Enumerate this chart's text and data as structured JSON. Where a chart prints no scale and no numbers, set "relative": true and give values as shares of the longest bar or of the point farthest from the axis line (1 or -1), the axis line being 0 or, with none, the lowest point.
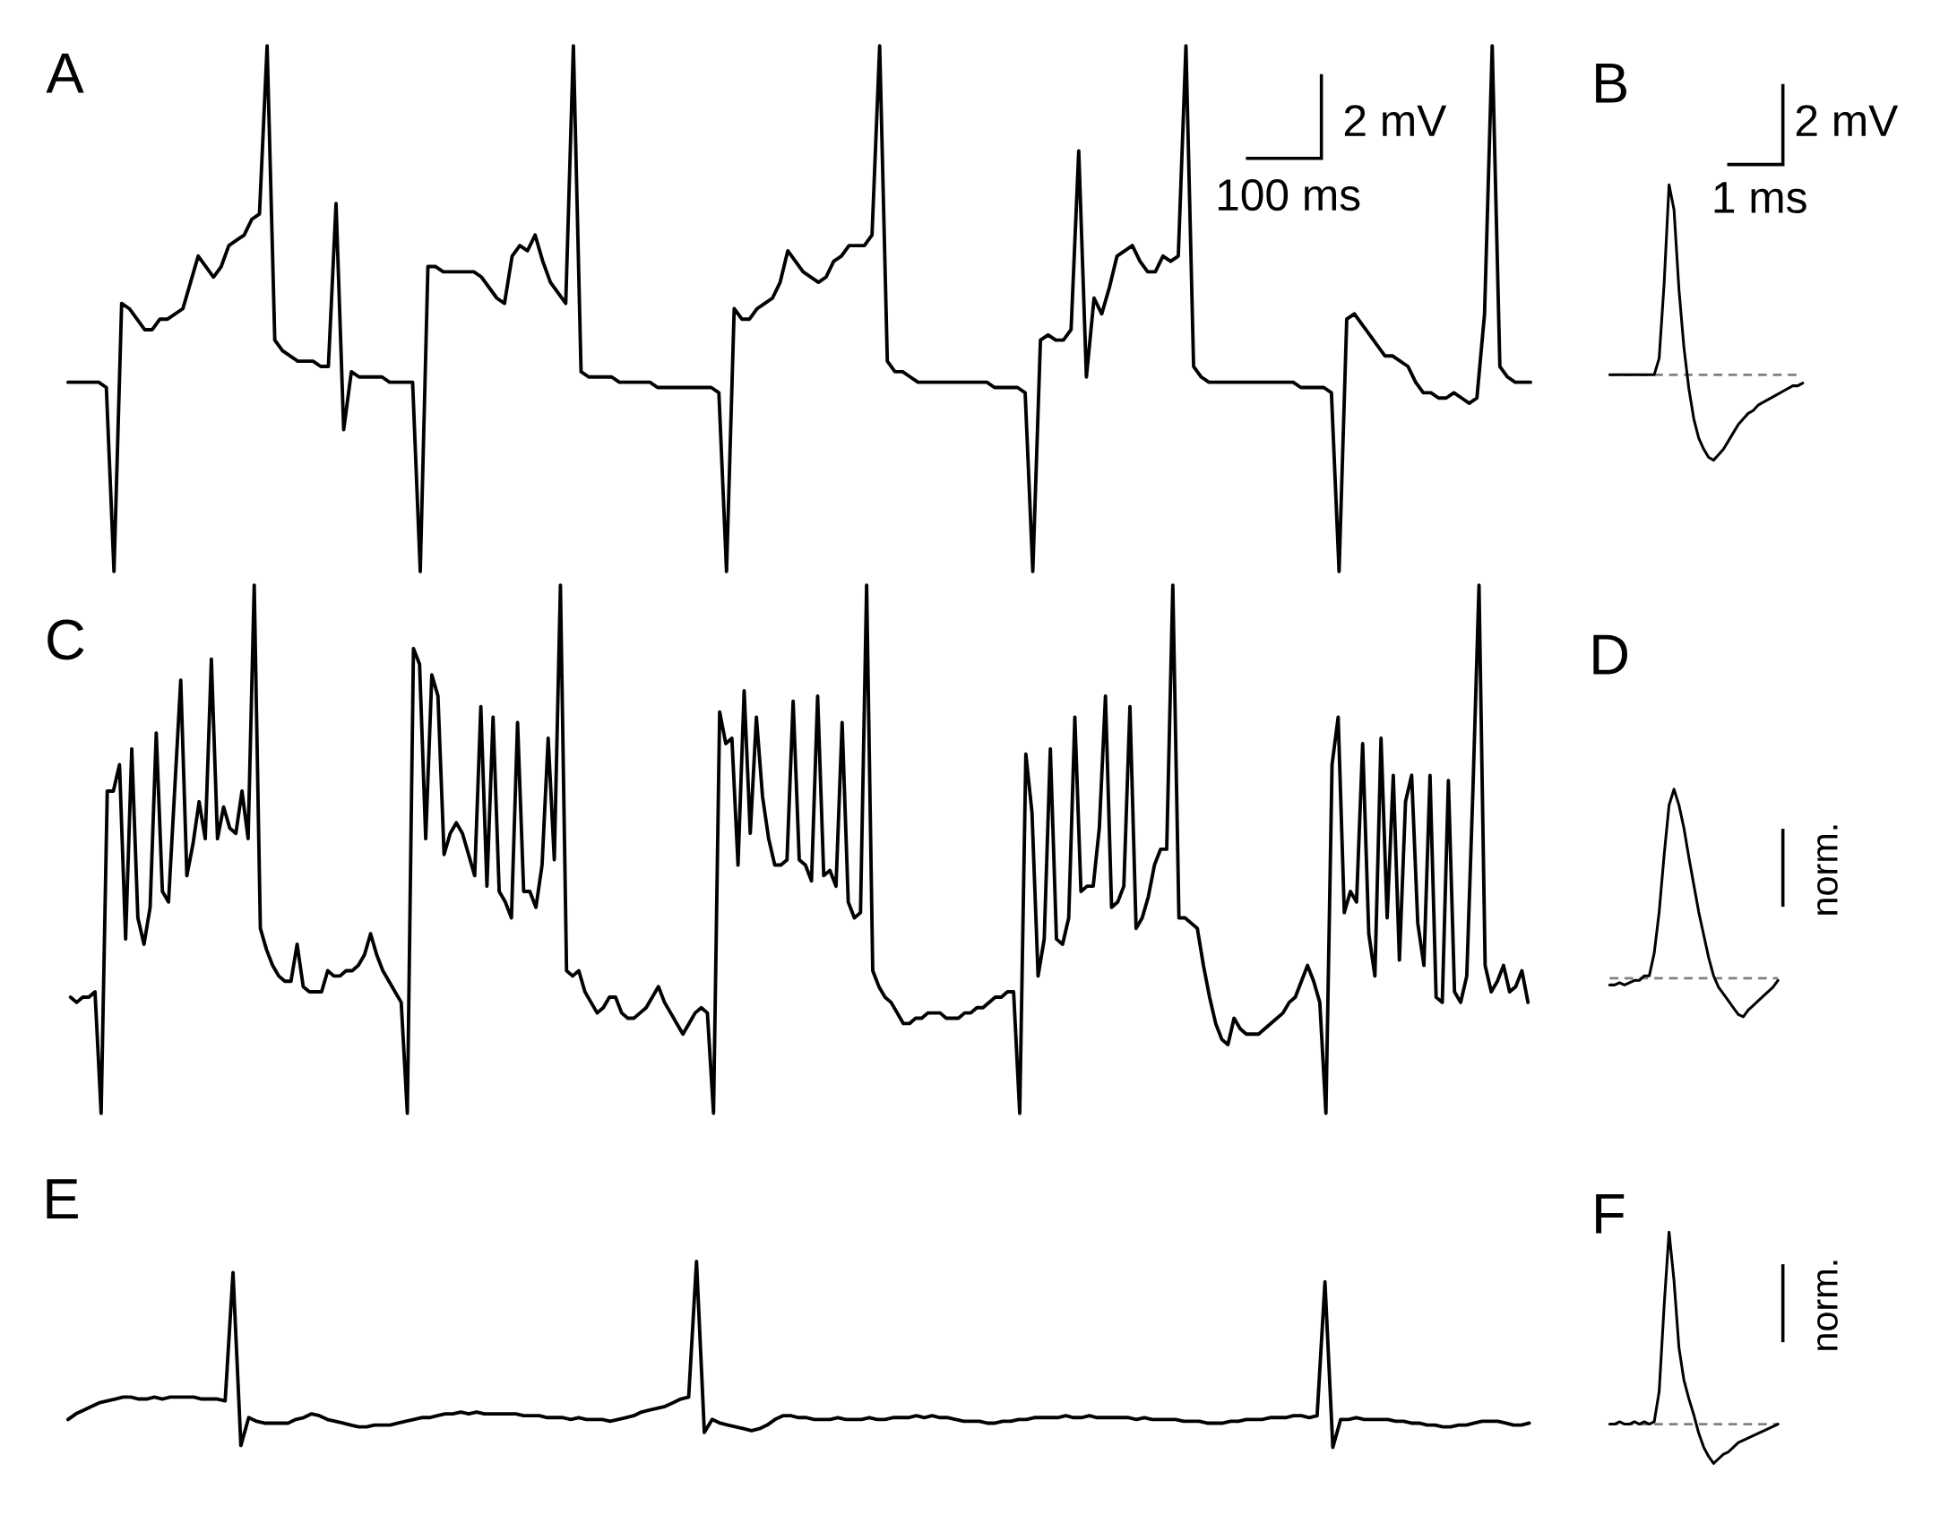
{
  "chart_data": [
    {
      "type": "line",
      "title": "A",
      "color": "#000000",
      "relative": true,
      "annotations": [
        "2 mV",
        "100 ms"
      ],
      "categories": [
        null,
        null,
        null,
        null,
        null,
        null,
        null,
        null,
        null,
        null,
        null,
        null,
        null,
        null,
        null,
        null,
        null,
        null,
        null,
        null,
        null,
        null,
        null,
        null,
        null,
        null,
        null,
        null,
        null,
        null,
        null,
        null,
        null,
        null,
        null,
        null,
        null,
        null,
        null,
        null,
        null,
        null,
        null,
        null,
        null,
        null,
        null,
        null,
        null,
        null,
        null,
        null,
        null,
        null,
        null,
        null,
        null,
        null,
        null,
        null,
        null,
        null,
        null,
        null,
        null,
        null,
        null,
        null,
        null,
        null,
        null,
        null,
        null,
        null,
        null,
        null,
        null,
        null,
        null,
        null,
        null,
        null,
        null,
        null,
        null,
        null,
        null,
        null,
        null,
        null,
        null,
        null,
        null,
        null,
        null,
        null,
        null,
        null,
        null,
        null,
        null,
        null,
        null,
        null,
        null,
        null,
        null,
        null,
        null,
        null,
        null,
        null,
        null,
        null,
        null,
        null,
        null,
        null,
        null,
        null,
        null,
        null,
        null,
        null,
        null,
        null,
        null,
        null,
        null,
        null,
        null,
        null,
        null,
        null,
        null,
        null,
        null,
        null,
        null,
        null,
        null,
        null,
        null,
        null,
        null,
        null,
        null,
        null,
        null,
        null,
        null,
        null,
        null,
        null,
        null,
        null,
        null,
        null,
        null,
        null,
        null,
        null,
        null,
        null,
        null,
        null,
        null,
        null,
        null,
        null,
        null,
        null,
        null,
        null,
        null,
        null,
        null,
        null,
        null,
        null,
        null,
        null,
        null,
        null,
        null,
        null,
        null,
        null,
        null,
        null,
        null,
        null
      ],
      "values": [
        0.36,
        0.36,
        0.36,
        0.36,
        0.36,
        0.35,
        0,
        0.51,
        0.5,
        0.48,
        0.46,
        0.46,
        0.48,
        0.48,
        0.49,
        0.5,
        0.55,
        0.6,
        0.58,
        0.56,
        0.58,
        0.62,
        0.63,
        0.64,
        0.67,
        0.68,
        1,
        0.44,
        0.42,
        0.41,
        0.4,
        0.4,
        0.4,
        0.39,
        0.39,
        0.7,
        0.27,
        0.38,
        0.37,
        0.37,
        0.37,
        0.37,
        0.36,
        0.36,
        0.36,
        0.36,
        0,
        0.58,
        0.58,
        0.57,
        0.57,
        0.57,
        0.57,
        0.57,
        0.56,
        0.54,
        0.52,
        0.51,
        0.6,
        0.62,
        0.61,
        0.64,
        0.59,
        0.55,
        0.53,
        0.51,
        1,
        0.38,
        0.37,
        0.37,
        0.37,
        0.37,
        0.36,
        0.36,
        0.36,
        0.36,
        0.36,
        0.35,
        0.35,
        0.35,
        0.35,
        0.35,
        0.35,
        0.35,
        0.35,
        0.34,
        0,
        0.5,
        0.48,
        0.48,
        0.5,
        0.51,
        0.52,
        0.55,
        0.61,
        0.59,
        0.57,
        0.56,
        0.55,
        0.56,
        0.59,
        0.6,
        0.62,
        0.62,
        0.62,
        0.64,
        1,
        0.4,
        0.38,
        0.38,
        0.37,
        0.36,
        0.36,
        0.36,
        0.36,
        0.36,
        0.36,
        0.36,
        0.36,
        0.36,
        0.36,
        0.35,
        0.35,
        0.35,
        0.35,
        0.34,
        0,
        0.44,
        0.45,
        0.44,
        0.44,
        0.46,
        0.8,
        0.37,
        0.52,
        0.49,
        0.54,
        0.6,
        0.61,
        0.62,
        0.59,
        0.57,
        0.57,
        0.6,
        0.59,
        0.6,
        1,
        0.39,
        0.37,
        0.36,
        0.36,
        0.36,
        0.36,
        0.36,
        0.36,
        0.36,
        0.36,
        0.36,
        0.36,
        0.36,
        0.36,
        0.35,
        0.35,
        0.35,
        0.35,
        0.34,
        0,
        0.48,
        0.49,
        0.47,
        0.45,
        0.43,
        0.41,
        0.41,
        0.4,
        0.39,
        0.36,
        0.34,
        0.34,
        0.33,
        0.33,
        0.34,
        0.33,
        0.32,
        0.33,
        0.49,
        1,
        0.39,
        0.37,
        0.36,
        0.36,
        0.36
      ]
    },
    {
      "type": "line",
      "title": "B",
      "color": "#000000",
      "relative": true,
      "annotations": [
        "2 mV",
        "1 ms"
      ],
      "ref_lines": [
        {
          "axis": "y",
          "value": 0.31,
          "color": "#808080",
          "line_style": "dashed"
        }
      ],
      "categories": [
        null,
        null,
        null,
        null,
        null,
        null,
        null,
        null,
        null,
        null,
        null,
        null,
        null,
        null,
        null,
        null,
        null,
        null,
        null,
        null,
        null,
        null,
        null,
        null,
        null,
        null,
        null,
        null,
        null,
        null,
        null,
        null,
        null,
        null,
        null,
        null,
        null,
        null,
        null,
        null
      ],
      "values": [
        0.31,
        0.31,
        0.31,
        0.31,
        0.31,
        0.31,
        0.31,
        0.31,
        0.31,
        0.31,
        0.37,
        0.64,
        1,
        0.91,
        0.62,
        0.41,
        0.26,
        0.15,
        0.08,
        0.04,
        0.01,
        0,
        0.02,
        0.04,
        0.07,
        0.1,
        0.13,
        0.15,
        0.17,
        0.18,
        0.2,
        0.21,
        0.22,
        0.23,
        0.24,
        0.25,
        0.26,
        0.27,
        0.27,
        0.28
      ]
    },
    {
      "type": "line",
      "title": "C",
      "color": "#000000",
      "relative": true,
      "categories": [
        null,
        null,
        null,
        null,
        null,
        null,
        null,
        null,
        null,
        null,
        null,
        null,
        null,
        null,
        null,
        null,
        null,
        null,
        null,
        null,
        null,
        null,
        null,
        null,
        null,
        null,
        null,
        null,
        null,
        null,
        null,
        null,
        null,
        null,
        null,
        null,
        null,
        null,
        null,
        null,
        null,
        null,
        null,
        null,
        null,
        null,
        null,
        null,
        null,
        null,
        null,
        null,
        null,
        null,
        null,
        null,
        null,
        null,
        null,
        null,
        null,
        null,
        null,
        null,
        null,
        null,
        null,
        null,
        null,
        null,
        null,
        null,
        null,
        null,
        null,
        null,
        null,
        null,
        null,
        null,
        null,
        null,
        null,
        null,
        null,
        null,
        null,
        null,
        null,
        null,
        null,
        null,
        null,
        null,
        null,
        null,
        null,
        null,
        null,
        null,
        null,
        null,
        null,
        null,
        null,
        null,
        null,
        null,
        null,
        null,
        null,
        null,
        null,
        null,
        null,
        null,
        null,
        null,
        null,
        null,
        null,
        null,
        null,
        null,
        null,
        null,
        null,
        null,
        null,
        null,
        null,
        null,
        null,
        null,
        null,
        null,
        null,
        null,
        null,
        null,
        null,
        null,
        null,
        null,
        null,
        null,
        null,
        null,
        null,
        null,
        null,
        null,
        null,
        null,
        null,
        null,
        null,
        null,
        null,
        null,
        null,
        null,
        null,
        null,
        null,
        null,
        null,
        null,
        null,
        null,
        null,
        null,
        null,
        null,
        null,
        null,
        null,
        null,
        null,
        null,
        null,
        null,
        null,
        null,
        null,
        null,
        null,
        null,
        null,
        null,
        null,
        null,
        null,
        null,
        null,
        null,
        null,
        null,
        null,
        null,
        null,
        null,
        null,
        null,
        null,
        null,
        null,
        null,
        null,
        null,
        null,
        null,
        null,
        null,
        null,
        null,
        null,
        null,
        null,
        null,
        null,
        null,
        null,
        null,
        null,
        null,
        null,
        null,
        null,
        null,
        null,
        null,
        null,
        null,
        null,
        null,
        null,
        null,
        null
      ],
      "values": [
        0.22,
        0.21,
        0.22,
        0.22,
        0.23,
        0,
        0.61,
        0.61,
        0.66,
        0.33,
        0.69,
        0.37,
        0.32,
        0.39,
        0.72,
        0.42,
        0.4,
        0.61,
        0.82,
        0.45,
        0.51,
        0.59,
        0.52,
        0.86,
        0.52,
        0.58,
        0.54,
        0.53,
        0.61,
        0.52,
        1,
        0.35,
        0.31,
        0.28,
        0.26,
        0.25,
        0.25,
        0.32,
        0.24,
        0.23,
        0.23,
        0.23,
        0.27,
        0.26,
        0.26,
        0.27,
        0.27,
        0.28,
        0.3,
        0.34,
        0.3,
        0.27,
        0.25,
        0.23,
        0.21,
        0,
        0.88,
        0.85,
        0.52,
        0.83,
        0.79,
        0.49,
        0.53,
        0.55,
        0.53,
        0.49,
        0.45,
        0.77,
        0.43,
        0.75,
        0.42,
        0.4,
        0.37,
        0.74,
        0.42,
        0.42,
        0.39,
        0.47,
        0.71,
        0.48,
        1,
        0.27,
        0.26,
        0.27,
        0.23,
        0.21,
        0.19,
        0.2,
        0.22,
        0.22,
        0.19,
        0.18,
        0.18,
        0.19,
        0.2,
        0.22,
        0.24,
        0.21,
        0.19,
        0.17,
        0.15,
        0.17,
        0.19,
        0.2,
        0.19,
        0,
        0.76,
        0.7,
        0.71,
        0.47,
        0.8,
        0.53,
        0.75,
        0.6,
        0.52,
        0.47,
        0.47,
        0.48,
        0.78,
        0.48,
        0.47,
        0.44,
        0.79,
        0.45,
        0.46,
        0.43,
        0.74,
        0.4,
        0.37,
        0.38,
        1,
        0.27,
        0.24,
        0.22,
        0.21,
        0.19,
        0.17,
        0.17,
        0.18,
        0.18,
        0.19,
        0.19,
        0.19,
        0.18,
        0.18,
        0.18,
        0.19,
        0.19,
        0.2,
        0.2,
        0.21,
        0.22,
        0.22,
        0.23,
        0.23,
        0,
        0.68,
        0.57,
        0.26,
        0.33,
        0.69,
        0.33,
        0.32,
        0.37,
        0.75,
        0.42,
        0.43,
        0.43,
        0.54,
        0.79,
        0.39,
        0.4,
        0.43,
        0.77,
        0.35,
        0.37,
        0.41,
        0.47,
        0.5,
        0.5,
        1,
        0.37,
        0.37,
        0.36,
        0.35,
        0.28,
        0.22,
        0.17,
        0.14,
        0.13,
        0.18,
        0.16,
        0.15,
        0.15,
        0.15,
        0.16,
        0.17,
        0.18,
        0.19,
        0.21,
        0.22,
        0.25,
        0.28,
        0.25,
        0.21,
        0,
        0.66,
        0.75,
        0.38,
        0.42,
        0.4,
        0.7,
        0.34,
        0.26,
        0.71,
        0.37,
        0.64,
        0.29,
        0.59,
        0.64,
        0.36,
        0.28,
        0.64,
        0.22,
        0.21,
        0.63,
        0.23,
        0.21,
        0.26,
        0.61,
        1,
        0.28,
        0.23,
        0.25,
        0.28,
        0.23,
        0.24,
        0.27,
        0.21
      ]
    },
    {
      "type": "line",
      "title": "D",
      "color": "#000000",
      "relative": true,
      "annotations": [
        "norm."
      ],
      "ref_lines": [
        {
          "axis": "y",
          "value": 0.17,
          "color": "#808080",
          "line_style": "dashed"
        }
      ],
      "categories": [
        null,
        null,
        null,
        null,
        null,
        null,
        null,
        null,
        null,
        null,
        null,
        null,
        null,
        null,
        null,
        null,
        null,
        null,
        null,
        null,
        null,
        null,
        null,
        null,
        null,
        null,
        null,
        null,
        null,
        null,
        null,
        null,
        null,
        null,
        null
      ],
      "values": [
        0.14,
        0.14,
        0.15,
        0.14,
        0.15,
        0.16,
        0.16,
        0.18,
        0.18,
        0.28,
        0.46,
        0.71,
        0.93,
        1,
        0.93,
        0.83,
        0.7,
        0.58,
        0.46,
        0.36,
        0.26,
        0.18,
        0.13,
        0.1,
        0.07,
        0.04,
        0.01,
        0,
        0.03,
        0.05,
        0.07,
        0.09,
        0.11,
        0.13,
        0.16
      ]
    },
    {
      "type": "line",
      "title": "E",
      "color": "#000000",
      "relative": true,
      "categories": [
        null,
        null,
        null,
        null,
        null,
        null,
        null,
        null,
        null,
        null,
        null,
        null,
        null,
        null,
        null,
        null,
        null,
        null,
        null,
        null,
        null,
        null,
        null,
        null,
        null,
        null,
        null,
        null,
        null,
        null,
        null,
        null,
        null,
        null,
        null,
        null,
        null,
        null,
        null,
        null,
        null,
        null,
        null,
        null,
        null,
        null,
        null,
        null,
        null,
        null,
        null,
        null,
        null,
        null,
        null,
        null,
        null,
        null,
        null,
        null,
        null,
        null,
        null,
        null,
        null,
        null,
        null,
        null,
        null,
        null,
        null,
        null,
        null,
        null,
        null,
        null,
        null,
        null,
        null,
        null,
        null,
        null,
        null,
        null,
        null,
        null,
        null,
        null,
        null,
        null,
        null,
        null,
        null,
        null,
        null,
        null,
        null,
        null,
        null,
        null,
        null,
        null,
        null,
        null,
        null,
        null,
        null,
        null,
        null,
        null,
        null,
        null,
        null,
        null,
        null,
        null,
        null,
        null,
        null,
        null,
        null,
        null,
        null,
        null,
        null,
        null,
        null,
        null,
        null,
        null,
        null,
        null,
        null,
        null,
        null,
        null,
        null,
        null,
        null,
        null,
        null,
        null,
        null,
        null,
        null,
        null,
        null,
        null,
        null,
        null,
        null,
        null,
        null,
        null,
        null,
        null,
        null,
        null,
        null,
        null,
        null,
        null,
        null,
        null,
        null,
        null,
        null,
        null,
        null,
        null,
        null,
        null,
        null,
        null,
        null,
        null,
        null,
        null,
        null,
        null,
        null,
        null,
        null,
        null,
        null,
        null,
        null
      ],
      "values": [
        0.15,
        0.18,
        0.2,
        0.22,
        0.24,
        0.25,
        0.26,
        0.27,
        0.27,
        0.26,
        0.26,
        0.27,
        0.26,
        0.27,
        0.27,
        0.27,
        0.27,
        0.26,
        0.26,
        0.26,
        0.25,
        0.94,
        0.01,
        0.16,
        0.14,
        0.13,
        0.13,
        0.13,
        0.13,
        0.15,
        0.16,
        0.18,
        0.17,
        0.15,
        0.14,
        0.13,
        0.12,
        0.11,
        0.11,
        0.12,
        0.12,
        0.12,
        0.13,
        0.14,
        0.15,
        0.16,
        0.16,
        0.17,
        0.18,
        0.18,
        0.19,
        0.18,
        0.19,
        0.18,
        0.18,
        0.18,
        0.18,
        0.18,
        0.17,
        0.17,
        0.17,
        0.16,
        0.16,
        0.16,
        0.15,
        0.16,
        0.15,
        0.15,
        0.15,
        0.14,
        0.15,
        0.16,
        0.17,
        0.19,
        0.2,
        0.21,
        0.22,
        0.24,
        0.26,
        0.27,
        1,
        0.08,
        0.15,
        0.13,
        0.12,
        0.11,
        0.1,
        0.09,
        0.1,
        0.12,
        0.15,
        0.17,
        0.17,
        0.16,
        0.16,
        0.15,
        0.15,
        0.15,
        0.16,
        0.15,
        0.15,
        0.15,
        0.16,
        0.15,
        0.15,
        0.16,
        0.16,
        0.16,
        0.17,
        0.16,
        0.17,
        0.16,
        0.16,
        0.15,
        0.14,
        0.14,
        0.14,
        0.13,
        0.13,
        0.14,
        0.14,
        0.15,
        0.15,
        0.16,
        0.16,
        0.16,
        0.16,
        0.17,
        0.16,
        0.16,
        0.17,
        0.16,
        0.16,
        0.16,
        0.16,
        0.16,
        0.15,
        0.16,
        0.15,
        0.15,
        0.15,
        0.15,
        0.14,
        0.14,
        0.14,
        0.13,
        0.13,
        0.13,
        0.14,
        0.14,
        0.15,
        0.15,
        0.15,
        0.16,
        0.16,
        0.16,
        0.17,
        0.17,
        0.16,
        0.17,
        0.89,
        0,
        0.15,
        0.15,
        0.16,
        0.15,
        0.15,
        0.15,
        0.15,
        0.14,
        0.14,
        0.13,
        0.13,
        0.12,
        0.12,
        0.11,
        0.11,
        0.12,
        0.12,
        0.13,
        0.14,
        0.14,
        0.14,
        0.13,
        0.12,
        0.12,
        0.13
      ]
    },
    {
      "type": "line",
      "title": "F",
      "color": "#000000",
      "relative": true,
      "annotations": [
        "norm."
      ],
      "ref_lines": [
        {
          "axis": "y",
          "value": 0.17,
          "color": "#808080",
          "line_style": "dashed"
        }
      ],
      "categories": [
        null,
        null,
        null,
        null,
        null,
        null,
        null,
        null,
        null,
        null,
        null,
        null,
        null,
        null,
        null,
        null,
        null,
        null,
        null,
        null,
        null,
        null,
        null,
        null,
        null,
        null,
        null,
        null,
        null,
        null,
        null,
        null,
        null,
        null,
        null
      ],
      "values": [
        0.17,
        0.17,
        0.18,
        0.17,
        0.17,
        0.18,
        0.17,
        0.18,
        0.17,
        0.18,
        0.31,
        0.68,
        1,
        0.79,
        0.5,
        0.36,
        0.28,
        0.21,
        0.13,
        0.07,
        0.03,
        0,
        0.02,
        0.04,
        0.05,
        0.07,
        0.09,
        0.1,
        0.11,
        0.12,
        0.13,
        0.14,
        0.15,
        0.16,
        0.17
      ]
    }
  ]
}
